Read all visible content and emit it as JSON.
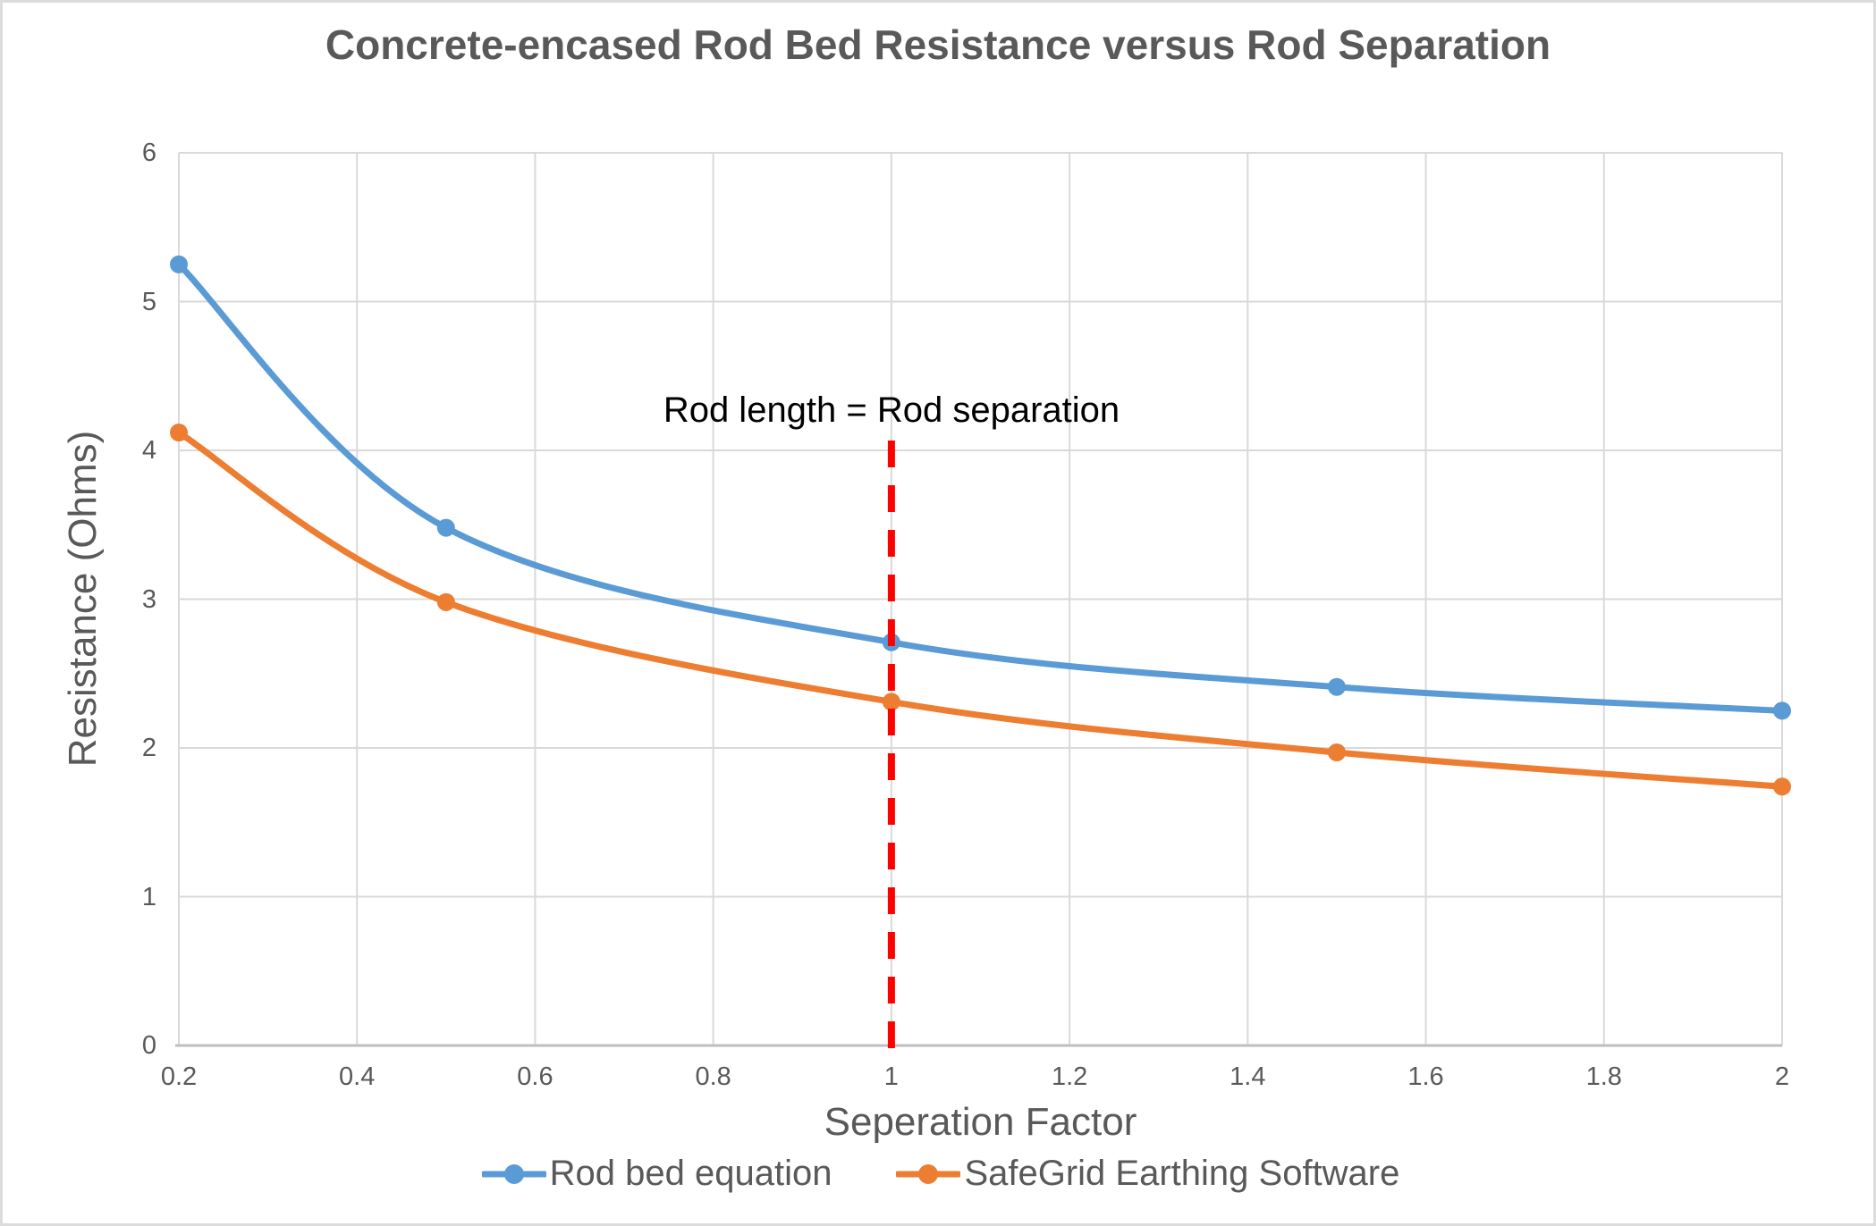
{
  "page": {
    "background": "#ffffff",
    "border_color": "#dcdcdc"
  },
  "chart_data": {
    "type": "line",
    "title": "Concrete-encased Rod Bed Resistance versus Rod Separation",
    "xlabel": "Seperation Factor",
    "ylabel": "Resistance (Ohms)",
    "x": [
      0.2,
      0.5,
      1,
      1.5,
      2
    ],
    "series": [
      {
        "name": "Rod bed equation",
        "color": "#5B9BD5",
        "values": [
          5.25,
          3.48,
          2.71,
          2.41,
          2.25
        ]
      },
      {
        "name": "SafeGrid Earthing Software",
        "color": "#ED7D31",
        "values": [
          4.12,
          2.98,
          2.31,
          1.97,
          1.74
        ]
      }
    ],
    "xlim": [
      0.2,
      2
    ],
    "ylim": [
      0,
      6
    ],
    "xticks": [
      0.2,
      0.4,
      0.6,
      0.8,
      1,
      1.2,
      1.4,
      1.6,
      1.8,
      2
    ],
    "yticks": [
      0,
      1,
      2,
      3,
      4,
      5,
      6
    ],
    "grid": true,
    "smooth_lines": true,
    "legend_position": "bottom",
    "annotation": {
      "text": "Rod length = Rod separation",
      "x": 1,
      "line_color": "#FF0000",
      "line_style": "dashed"
    },
    "colors": {
      "gridline": "#D9D9D9",
      "axis_line": "#BFBFBF",
      "text": "#595959",
      "annotation_text": "#000000"
    }
  }
}
